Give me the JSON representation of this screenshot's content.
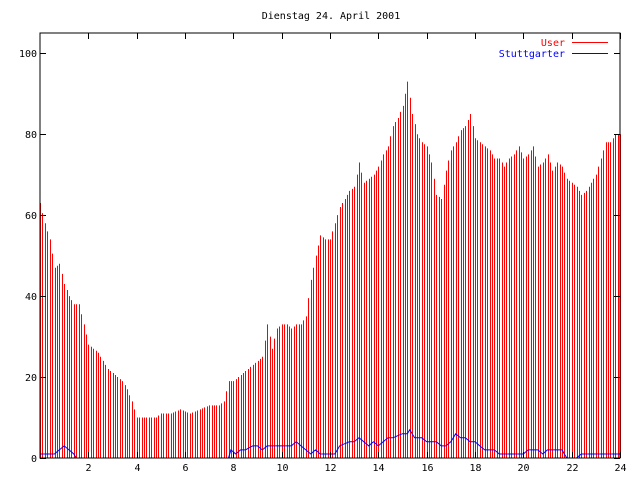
{
  "chart_data": {
    "type": "bar",
    "title": "Dienstag 24. April 2001",
    "xlabel": "",
    "ylabel": "",
    "xlim": [
      0,
      24
    ],
    "ylim": [
      0,
      105
    ],
    "grid": false,
    "legend_position": "top-right",
    "x_ticks": [
      "2",
      "4",
      "6",
      "8",
      "10",
      "12",
      "14",
      "16",
      "18",
      "20",
      "22",
      "24"
    ],
    "y_ticks": [
      "0",
      "20",
      "40",
      "60",
      "80",
      "100"
    ],
    "sample_step_hours": 0.1,
    "series": [
      {
        "name": "User",
        "style": "impulses",
        "color": "#ff0000",
        "key": [
          [
            0.0,
            63
          ],
          [
            0.2,
            58
          ],
          [
            0.4,
            54
          ],
          [
            0.6,
            47
          ],
          [
            0.8,
            48
          ],
          [
            1.0,
            43
          ],
          [
            1.2,
            40
          ],
          [
            1.4,
            38
          ],
          [
            1.6,
            38
          ],
          [
            1.8,
            33
          ],
          [
            2.0,
            28
          ],
          [
            2.2,
            27
          ],
          [
            2.4,
            26
          ],
          [
            2.6,
            24
          ],
          [
            2.8,
            22
          ],
          [
            3.0,
            21
          ],
          [
            3.2,
            20
          ],
          [
            3.4,
            19
          ],
          [
            3.6,
            17
          ],
          [
            3.8,
            14
          ],
          [
            4.0,
            10
          ],
          [
            4.4,
            10
          ],
          [
            4.8,
            10
          ],
          [
            5.0,
            11
          ],
          [
            5.4,
            11
          ],
          [
            5.8,
            12
          ],
          [
            6.2,
            11
          ],
          [
            6.6,
            12
          ],
          [
            7.0,
            13
          ],
          [
            7.4,
            13
          ],
          [
            7.6,
            14
          ],
          [
            7.8,
            19
          ],
          [
            8.0,
            19
          ],
          [
            8.2,
            20
          ],
          [
            8.4,
            21
          ],
          [
            8.6,
            22
          ],
          [
            8.8,
            23
          ],
          [
            9.0,
            24
          ],
          [
            9.2,
            25
          ],
          [
            9.4,
            33
          ],
          [
            9.6,
            27
          ],
          [
            9.8,
            32
          ],
          [
            10.0,
            33
          ],
          [
            10.2,
            33
          ],
          [
            10.4,
            32
          ],
          [
            10.6,
            33
          ],
          [
            10.8,
            33
          ],
          [
            11.0,
            35
          ],
          [
            11.2,
            44
          ],
          [
            11.4,
            50
          ],
          [
            11.6,
            55
          ],
          [
            11.8,
            54
          ],
          [
            12.0,
            54
          ],
          [
            12.2,
            58
          ],
          [
            12.4,
            62
          ],
          [
            12.6,
            64
          ],
          [
            12.8,
            66
          ],
          [
            13.0,
            67
          ],
          [
            13.2,
            73
          ],
          [
            13.4,
            68
          ],
          [
            13.6,
            69
          ],
          [
            13.8,
            70
          ],
          [
            14.0,
            72
          ],
          [
            14.2,
            75
          ],
          [
            14.4,
            77
          ],
          [
            14.6,
            82
          ],
          [
            14.8,
            84
          ],
          [
            15.0,
            87
          ],
          [
            15.2,
            93
          ],
          [
            15.4,
            85
          ],
          [
            15.6,
            80
          ],
          [
            15.8,
            78
          ],
          [
            16.0,
            77
          ],
          [
            16.2,
            73
          ],
          [
            16.4,
            65
          ],
          [
            16.6,
            64
          ],
          [
            16.8,
            71
          ],
          [
            17.0,
            76
          ],
          [
            17.2,
            78
          ],
          [
            17.4,
            81
          ],
          [
            17.6,
            82
          ],
          [
            17.8,
            85
          ],
          [
            18.0,
            79
          ],
          [
            18.2,
            78
          ],
          [
            18.4,
            77
          ],
          [
            18.6,
            76
          ],
          [
            18.8,
            74
          ],
          [
            19.0,
            74
          ],
          [
            19.2,
            72
          ],
          [
            19.4,
            74
          ],
          [
            19.6,
            75
          ],
          [
            19.8,
            77
          ],
          [
            20.0,
            74
          ],
          [
            20.2,
            75
          ],
          [
            20.4,
            77
          ],
          [
            20.6,
            72
          ],
          [
            20.8,
            73
          ],
          [
            21.0,
            75
          ],
          [
            21.2,
            71
          ],
          [
            21.4,
            73
          ],
          [
            21.6,
            72
          ],
          [
            21.8,
            69
          ],
          [
            22.0,
            68
          ],
          [
            22.2,
            67
          ],
          [
            22.4,
            65
          ],
          [
            22.6,
            66
          ],
          [
            22.8,
            68
          ],
          [
            23.0,
            70
          ],
          [
            23.2,
            74
          ],
          [
            23.4,
            78
          ],
          [
            23.6,
            78
          ],
          [
            23.8,
            80
          ],
          [
            24.0,
            80
          ]
        ]
      },
      {
        "name": "Stuttgarter",
        "style": "line",
        "color": "#0000ff",
        "key": [
          [
            0.0,
            1
          ],
          [
            0.6,
            1
          ],
          [
            0.8,
            2
          ],
          [
            1.0,
            3
          ],
          [
            1.2,
            2
          ],
          [
            1.4,
            1
          ],
          [
            1.5,
            0
          ],
          [
            7.8,
            0
          ],
          [
            7.9,
            2
          ],
          [
            8.1,
            1
          ],
          [
            8.3,
            2
          ],
          [
            8.5,
            2
          ],
          [
            8.8,
            3
          ],
          [
            9.0,
            3
          ],
          [
            9.2,
            2
          ],
          [
            9.4,
            3
          ],
          [
            10.4,
            3
          ],
          [
            10.6,
            4
          ],
          [
            10.8,
            3
          ],
          [
            11.0,
            2
          ],
          [
            11.2,
            1
          ],
          [
            11.4,
            2
          ],
          [
            11.6,
            1
          ],
          [
            12.2,
            1
          ],
          [
            12.4,
            3
          ],
          [
            12.8,
            4
          ],
          [
            13.0,
            4
          ],
          [
            13.2,
            5
          ],
          [
            13.4,
            4
          ],
          [
            13.6,
            3
          ],
          [
            13.8,
            4
          ],
          [
            14.0,
            3
          ],
          [
            14.2,
            4
          ],
          [
            14.4,
            5
          ],
          [
            14.6,
            5
          ],
          [
            15.0,
            6
          ],
          [
            15.2,
            6
          ],
          [
            15.3,
            7
          ],
          [
            15.5,
            5
          ],
          [
            15.8,
            5
          ],
          [
            16.0,
            4
          ],
          [
            16.4,
            4
          ],
          [
            16.6,
            3
          ],
          [
            16.8,
            3
          ],
          [
            17.0,
            4
          ],
          [
            17.2,
            6
          ],
          [
            17.4,
            5
          ],
          [
            17.6,
            5
          ],
          [
            17.8,
            4
          ],
          [
            18.0,
            4
          ],
          [
            18.2,
            3
          ],
          [
            18.4,
            2
          ],
          [
            18.8,
            2
          ],
          [
            19.0,
            1
          ],
          [
            20.0,
            1
          ],
          [
            20.2,
            2
          ],
          [
            20.6,
            2
          ],
          [
            20.8,
            1
          ],
          [
            21.0,
            2
          ],
          [
            21.6,
            2
          ],
          [
            21.8,
            0
          ],
          [
            22.2,
            0
          ],
          [
            22.4,
            1
          ],
          [
            24.0,
            1
          ]
        ]
      }
    ]
  }
}
